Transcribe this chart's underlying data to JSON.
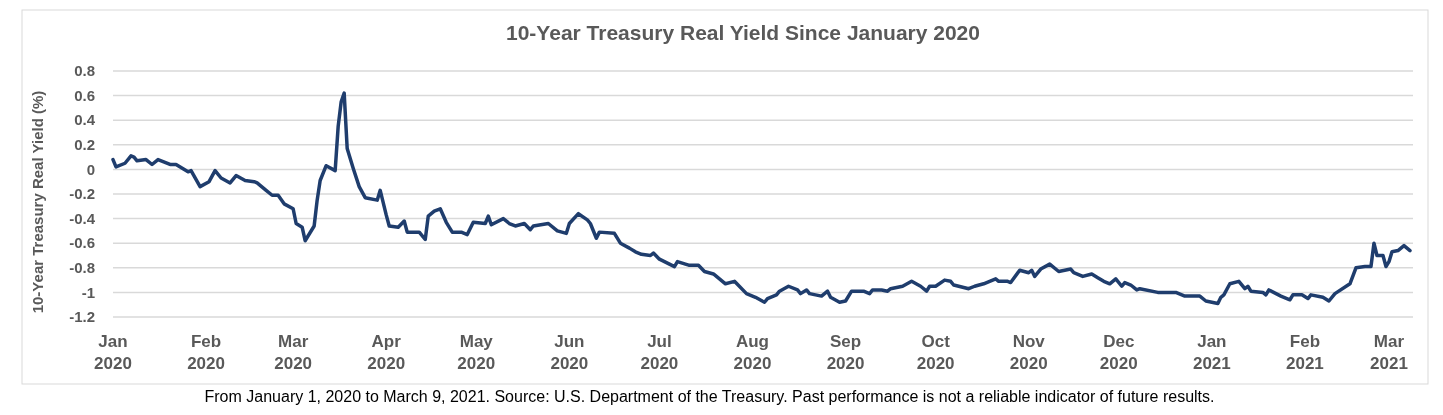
{
  "chart_data": {
    "type": "line",
    "title": "10-Year Treasury Real Yield Since January 2020",
    "ylabel": "10-Year Treasury Real Yield (%)",
    "annotations": [
      "From January 1, 2020 to March 9, 2021. Source: U.S. Department of the Treasury. Past performance is not a reliable indicator of future results."
    ],
    "xlim": [
      "2020-01-01",
      "2021-03-09"
    ],
    "xticks": [
      {
        "value": "2020-01-01",
        "label": "Jan 2020"
      },
      {
        "value": "2020-02-01",
        "label": "Feb 2020"
      },
      {
        "value": "2020-03-01",
        "label": "Mar 2020"
      },
      {
        "value": "2020-04-01",
        "label": "Apr 2020"
      },
      {
        "value": "2020-05-01",
        "label": "May 2020"
      },
      {
        "value": "2020-06-01",
        "label": "Jun 2020"
      },
      {
        "value": "2020-07-01",
        "label": "Jul 2020"
      },
      {
        "value": "2020-08-01",
        "label": "Aug 2020"
      },
      {
        "value": "2020-09-01",
        "label": "Sep 2020"
      },
      {
        "value": "2020-10-01",
        "label": "Oct 2020"
      },
      {
        "value": "2020-11-01",
        "label": "Nov 2020"
      },
      {
        "value": "2020-12-01",
        "label": "Dec 2020"
      },
      {
        "value": "2021-01-01",
        "label": "Jan 2021"
      },
      {
        "value": "2021-02-01",
        "label": "Feb 2021"
      },
      {
        "value": "2021-03-01",
        "label": "Mar 2021"
      }
    ],
    "ylim": [
      -1.2,
      0.8
    ],
    "yticks": [
      -1.2,
      -1,
      -0.8,
      -0.6,
      -0.4,
      -0.2,
      0,
      0.2,
      0.4,
      0.6,
      0.8
    ],
    "grid": "y",
    "x": [
      "2020-01-01",
      "2020-01-02",
      "2020-01-05",
      "2020-01-07",
      "2020-01-08",
      "2020-01-09",
      "2020-01-12",
      "2020-01-14",
      "2020-01-16",
      "2020-01-20",
      "2020-01-22",
      "2020-01-26",
      "2020-01-27",
      "2020-01-30",
      "2020-02-02",
      "2020-02-04",
      "2020-02-06",
      "2020-02-09",
      "2020-02-11",
      "2020-02-14",
      "2020-02-17",
      "2020-02-18",
      "2020-02-21",
      "2020-02-23",
      "2020-02-25",
      "2020-02-27",
      "2020-03-01",
      "2020-03-02",
      "2020-03-04",
      "2020-03-05",
      "2020-03-08",
      "2020-03-09",
      "2020-03-10",
      "2020-03-12",
      "2020-03-15",
      "2020-03-16",
      "2020-03-17",
      "2020-03-18",
      "2020-03-19",
      "2020-03-21",
      "2020-03-23",
      "2020-03-25",
      "2020-03-29",
      "2020-03-30",
      "2020-04-01",
      "2020-04-02",
      "2020-04-05",
      "2020-04-07",
      "2020-04-08",
      "2020-04-12",
      "2020-04-14",
      "2020-04-15",
      "2020-04-17",
      "2020-04-19",
      "2020-04-21",
      "2020-04-23",
      "2020-04-26",
      "2020-04-28",
      "2020-04-30",
      "2020-05-04",
      "2020-05-05",
      "2020-05-06",
      "2020-05-10",
      "2020-05-12",
      "2020-05-14",
      "2020-05-17",
      "2020-05-19",
      "2020-05-20",
      "2020-05-25",
      "2020-05-28",
      "2020-05-31",
      "2020-06-01",
      "2020-06-04",
      "2020-06-07",
      "2020-06-08",
      "2020-06-10",
      "2020-06-11",
      "2020-06-16",
      "2020-06-18",
      "2020-06-21",
      "2020-06-23",
      "2020-06-25",
      "2020-06-28",
      "2020-06-29",
      "2020-07-01",
      "2020-07-06",
      "2020-07-07",
      "2020-07-11",
      "2020-07-14",
      "2020-07-16",
      "2020-07-19",
      "2020-07-23",
      "2020-07-26",
      "2020-07-30",
      "2020-08-02",
      "2020-08-05",
      "2020-08-06",
      "2020-08-09",
      "2020-08-10",
      "2020-08-13",
      "2020-08-16",
      "2020-08-17",
      "2020-08-19",
      "2020-08-20",
      "2020-08-24",
      "2020-08-26",
      "2020-08-27",
      "2020-08-30",
      "2020-09-01",
      "2020-09-03",
      "2020-09-07",
      "2020-09-09",
      "2020-09-10",
      "2020-09-13",
      "2020-09-15",
      "2020-09-16",
      "2020-09-20",
      "2020-09-23",
      "2020-09-26",
      "2020-09-28",
      "2020-09-29",
      "2020-10-01",
      "2020-10-04",
      "2020-10-06",
      "2020-10-07",
      "2020-10-12",
      "2020-10-14",
      "2020-10-17",
      "2020-10-19",
      "2020-10-21",
      "2020-10-22",
      "2020-10-25",
      "2020-10-26",
      "2020-10-29",
      "2020-11-01",
      "2020-11-02",
      "2020-11-03",
      "2020-11-05",
      "2020-11-08",
      "2020-11-11",
      "2020-11-15",
      "2020-11-16",
      "2020-11-19",
      "2020-11-22",
      "2020-11-24",
      "2020-11-26",
      "2020-11-28",
      "2020-11-30",
      "2020-12-02",
      "2020-12-03",
      "2020-12-05",
      "2020-12-07",
      "2020-12-08",
      "2020-12-14",
      "2020-12-20",
      "2020-12-23",
      "2020-12-28",
      "2020-12-30",
      "2021-01-03",
      "2021-01-04",
      "2021-01-05",
      "2021-01-07",
      "2021-01-10",
      "2021-01-12",
      "2021-01-13",
      "2021-01-14",
      "2021-01-18",
      "2021-01-19",
      "2021-01-20",
      "2021-01-24",
      "2021-01-27",
      "2021-01-28",
      "2021-01-31",
      "2021-02-02",
      "2021-02-03",
      "2021-02-07",
      "2021-02-09",
      "2021-02-11",
      "2021-02-16",
      "2021-02-18",
      "2021-02-21",
      "2021-02-23",
      "2021-02-24",
      "2021-02-25",
      "2021-02-27",
      "2021-02-28",
      "2021-03-01",
      "2021-03-02",
      "2021-03-04",
      "2021-03-06",
      "2021-03-08"
    ],
    "series": [
      {
        "color": "#1f3d6d",
        "values": [
          0.08,
          0.02,
          0.05,
          0.11,
          0.1,
          0.07,
          0.08,
          0.04,
          0.08,
          0.04,
          0.04,
          -0.02,
          -0.01,
          -0.14,
          -0.1,
          -0.01,
          -0.07,
          -0.11,
          -0.05,
          -0.09,
          -0.1,
          -0.11,
          -0.17,
          -0.21,
          -0.21,
          -0.28,
          -0.32,
          -0.44,
          -0.47,
          -0.58,
          -0.46,
          -0.25,
          -0.09,
          0.03,
          -0.01,
          0.35,
          0.55,
          0.62,
          0.17,
          0.01,
          -0.14,
          -0.23,
          -0.25,
          -0.17,
          -0.37,
          -0.46,
          -0.47,
          -0.42,
          -0.51,
          -0.51,
          -0.57,
          -0.38,
          -0.34,
          -0.32,
          -0.43,
          -0.51,
          -0.51,
          -0.53,
          -0.43,
          -0.44,
          -0.38,
          -0.45,
          -0.4,
          -0.44,
          -0.46,
          -0.44,
          -0.49,
          -0.46,
          -0.44,
          -0.5,
          -0.52,
          -0.44,
          -0.36,
          -0.41,
          -0.44,
          -0.56,
          -0.51,
          -0.52,
          -0.6,
          -0.64,
          -0.67,
          -0.69,
          -0.7,
          -0.68,
          -0.73,
          -0.79,
          -0.75,
          -0.78,
          -0.78,
          -0.83,
          -0.85,
          -0.93,
          -0.91,
          -1.01,
          -1.04,
          -1.08,
          -1.05,
          -1.02,
          -0.99,
          -0.95,
          -0.98,
          -1.01,
          -0.98,
          -1.01,
          -1.03,
          -0.99,
          -1.04,
          -1.08,
          -1.07,
          -0.99,
          -0.99,
          -1.01,
          -0.98,
          -0.98,
          -0.99,
          -0.97,
          -0.95,
          -0.91,
          -0.95,
          -0.99,
          -0.95,
          -0.95,
          -0.9,
          -0.91,
          -0.94,
          -0.97,
          -0.95,
          -0.93,
          -0.91,
          -0.89,
          -0.91,
          -0.91,
          -0.92,
          -0.82,
          -0.84,
          -0.82,
          -0.87,
          -0.81,
          -0.77,
          -0.83,
          -0.81,
          -0.84,
          -0.87,
          -0.85,
          -0.88,
          -0.91,
          -0.93,
          -0.89,
          -0.95,
          -0.92,
          -0.94,
          -0.98,
          -0.97,
          -1.0,
          -1.0,
          -1.03,
          -1.03,
          -1.07,
          -1.09,
          -1.04,
          -1.02,
          -0.93,
          -0.91,
          -0.97,
          -0.95,
          -0.99,
          -1.0,
          -1.02,
          -0.98,
          -1.03,
          -1.06,
          -1.02,
          -1.02,
          -1.05,
          -1.02,
          -1.04,
          -1.07,
          -1.01,
          -0.93,
          -0.8,
          -0.79,
          -0.79,
          -0.6,
          -0.7,
          -0.7,
          -0.79,
          -0.75,
          -0.67,
          -0.66,
          -0.62,
          -0.66
        ]
      }
    ]
  }
}
